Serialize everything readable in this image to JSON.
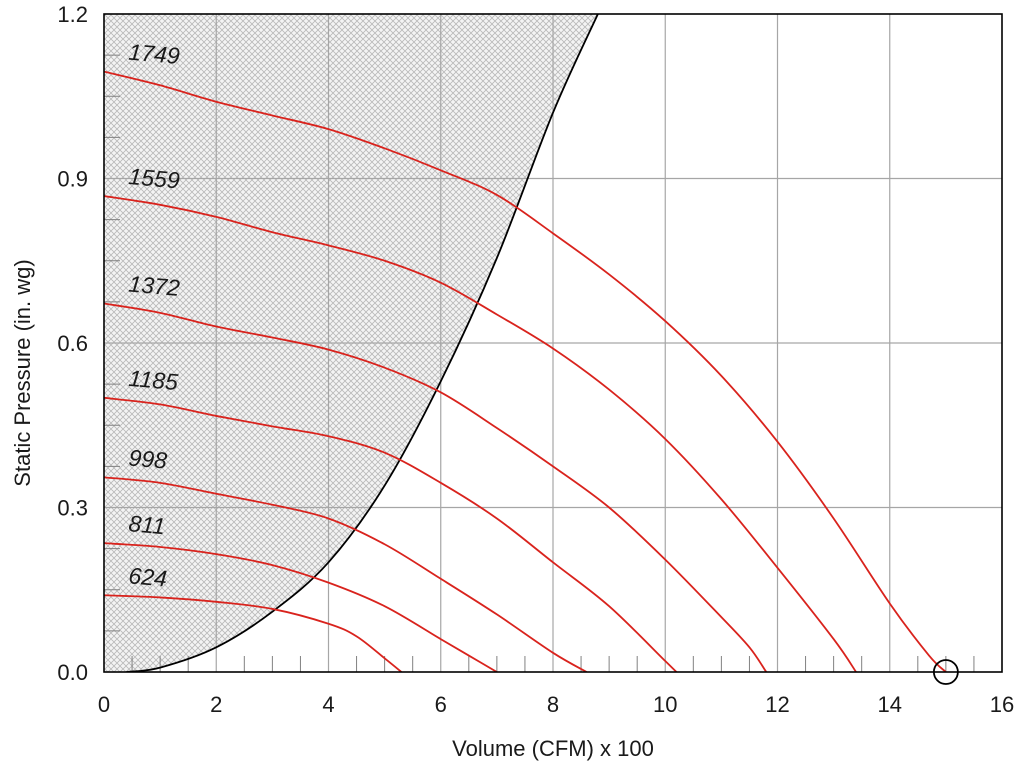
{
  "chart_data": {
    "type": "line",
    "title": "",
    "xlabel": "Volume (CFM) x 100",
    "ylabel": "Static Pressure (in. wg)",
    "xlim": [
      0,
      16
    ],
    "ylim": [
      0,
      1.2
    ],
    "x_ticks": [
      0,
      2,
      4,
      6,
      8,
      10,
      12,
      14,
      16
    ],
    "y_ticks": [
      0,
      0.3,
      0.6,
      0.9,
      1.2
    ],
    "x_tick_labels": [
      "0",
      "2",
      "4",
      "6",
      "8",
      "10",
      "12",
      "14",
      "16"
    ],
    "y_tick_labels": [
      "0.0",
      "0.3",
      "0.6",
      "0.9",
      "1.2"
    ],
    "grid": true,
    "colors": {
      "fan_curve": "#d9231d",
      "boundary": "#000000",
      "grid": "#a6a6a6",
      "shading": "#c8c8c8"
    },
    "series": [
      {
        "name": "624",
        "points": [
          [
            0,
            0.14
          ],
          [
            1,
            0.136
          ],
          [
            2,
            0.128
          ],
          [
            3,
            0.115
          ],
          [
            4,
            0.088
          ],
          [
            4.5,
            0.065
          ],
          [
            5,
            0.025
          ],
          [
            5.3,
            0
          ]
        ]
      },
      {
        "name": "811",
        "points": [
          [
            0,
            0.235
          ],
          [
            1,
            0.228
          ],
          [
            2,
            0.215
          ],
          [
            3,
            0.195
          ],
          [
            4,
            0.163
          ],
          [
            5,
            0.12
          ],
          [
            6,
            0.06
          ],
          [
            6.5,
            0.03
          ],
          [
            7,
            0
          ]
        ]
      },
      {
        "name": "998",
        "points": [
          [
            0,
            0.355
          ],
          [
            1,
            0.345
          ],
          [
            2,
            0.325
          ],
          [
            3,
            0.305
          ],
          [
            4,
            0.28
          ],
          [
            5,
            0.233
          ],
          [
            6,
            0.17
          ],
          [
            7,
            0.105
          ],
          [
            8,
            0.035
          ],
          [
            8.6,
            0
          ]
        ]
      },
      {
        "name": "1185",
        "points": [
          [
            0,
            0.5
          ],
          [
            1,
            0.488
          ],
          [
            2,
            0.467
          ],
          [
            3,
            0.448
          ],
          [
            4,
            0.43
          ],
          [
            5,
            0.4
          ],
          [
            6,
            0.345
          ],
          [
            7,
            0.28
          ],
          [
            8,
            0.2
          ],
          [
            9,
            0.12
          ],
          [
            10,
            0.02
          ],
          [
            10.2,
            0
          ]
        ]
      },
      {
        "name": "1372",
        "points": [
          [
            0,
            0.672
          ],
          [
            1,
            0.655
          ],
          [
            2,
            0.63
          ],
          [
            3,
            0.61
          ],
          [
            4,
            0.588
          ],
          [
            5,
            0.555
          ],
          [
            6,
            0.51
          ],
          [
            7,
            0.445
          ],
          [
            8,
            0.375
          ],
          [
            9,
            0.3
          ],
          [
            10,
            0.205
          ],
          [
            11,
            0.1
          ],
          [
            11.5,
            0.045
          ],
          [
            11.8,
            0
          ]
        ]
      },
      {
        "name": "1559",
        "points": [
          [
            0,
            0.868
          ],
          [
            1,
            0.852
          ],
          [
            2,
            0.83
          ],
          [
            3,
            0.802
          ],
          [
            4,
            0.778
          ],
          [
            5,
            0.75
          ],
          [
            6,
            0.71
          ],
          [
            7,
            0.652
          ],
          [
            8,
            0.59
          ],
          [
            9,
            0.515
          ],
          [
            10,
            0.425
          ],
          [
            11,
            0.315
          ],
          [
            12,
            0.19
          ],
          [
            13,
            0.06
          ],
          [
            13.4,
            0
          ]
        ]
      },
      {
        "name": "1749",
        "points": [
          [
            0,
            1.095
          ],
          [
            1,
            1.07
          ],
          [
            2,
            1.04
          ],
          [
            3,
            1.015
          ],
          [
            4,
            0.99
          ],
          [
            5,
            0.955
          ],
          [
            6,
            0.915
          ],
          [
            7,
            0.87
          ],
          [
            8,
            0.8
          ],
          [
            9,
            0.725
          ],
          [
            10,
            0.64
          ],
          [
            11,
            0.54
          ],
          [
            12,
            0.42
          ],
          [
            13,
            0.28
          ],
          [
            14,
            0.125
          ],
          [
            14.7,
            0.03
          ],
          [
            15,
            0
          ]
        ]
      }
    ],
    "boundary_curve": {
      "name": "stall region boundary",
      "points": [
        [
          0.4,
          0
        ],
        [
          1,
          0.008
        ],
        [
          2,
          0.045
        ],
        [
          3,
          0.11
        ],
        [
          4,
          0.2
        ],
        [
          5,
          0.34
        ],
        [
          6,
          0.53
        ],
        [
          7,
          0.755
        ],
        [
          8,
          1.02
        ],
        [
          8.8,
          1.2
        ]
      ]
    },
    "marker": {
      "type": "circle",
      "x": 15.0,
      "y": 0
    }
  }
}
